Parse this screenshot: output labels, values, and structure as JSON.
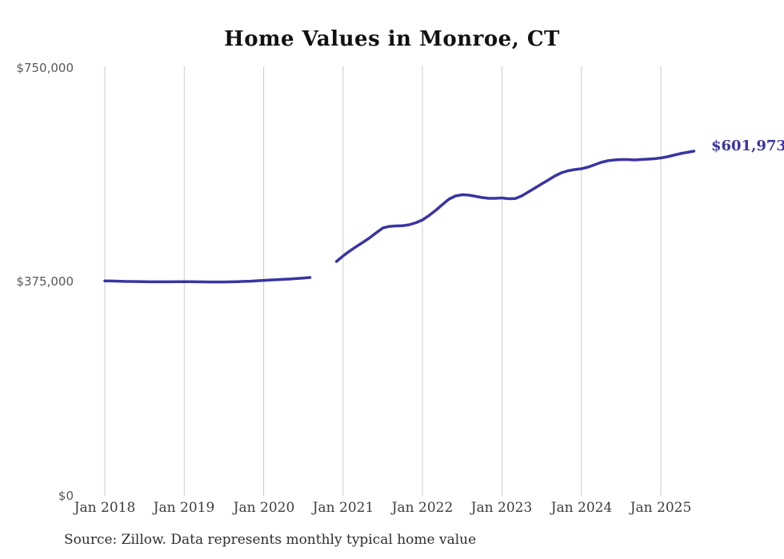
{
  "chart_data": {
    "type": "line",
    "title": "Home Values in Monroe, CT",
    "xlabel": "",
    "ylabel": "",
    "ylim": [
      0,
      750000
    ],
    "y_tick_labels": [
      "$750,000",
      "$375,000",
      "$0"
    ],
    "y_tick_values": [
      750000,
      375000,
      0
    ],
    "x_tick_labels": [
      "Jan 2018",
      "Jan 2019",
      "Jan 2020",
      "Jan 2021",
      "Jan 2022",
      "Jan 2023",
      "Jan 2024",
      "Jan 2025"
    ],
    "x_start": "Jan 2018",
    "x_interval": "month",
    "grid": "vertical-only",
    "legend": "none",
    "line_color": "#3a34a2",
    "grid_color": "#cbcbcb",
    "end_label": "$601,973",
    "series": [
      {
        "name": "Monthly typical home value",
        "values": [
          375400,
          375100,
          374800,
          374500,
          374300,
          374100,
          373900,
          373800,
          373700,
          373700,
          373800,
          373900,
          374000,
          373900,
          373700,
          373600,
          373500,
          373400,
          373500,
          373700,
          374000,
          374400,
          374900,
          375600,
          376300,
          376900,
          377500,
          378100,
          378700,
          379400,
          380300,
          381300,
          null,
          null,
          null,
          409200,
          419000,
          427500,
          435300,
          442700,
          450600,
          459200,
          467800,
          470600,
          471300,
          471600,
          473400,
          477000,
          481800,
          489700,
          498600,
          508600,
          518100,
          523700,
          525800,
          525100,
          523000,
          520900,
          519500,
          519500,
          520200,
          518800,
          519200,
          523700,
          530700,
          537700,
          544700,
          551600,
          558600,
          564200,
          567700,
          569800,
          571200,
          574000,
          578200,
          582400,
          585200,
          586600,
          587300,
          587300,
          586600,
          587300,
          588000,
          588700,
          590100,
          592200,
          595000,
          597800,
          599900,
          601973
        ]
      }
    ]
  },
  "source_note": "Source: Zillow. Data represents monthly typical home value"
}
